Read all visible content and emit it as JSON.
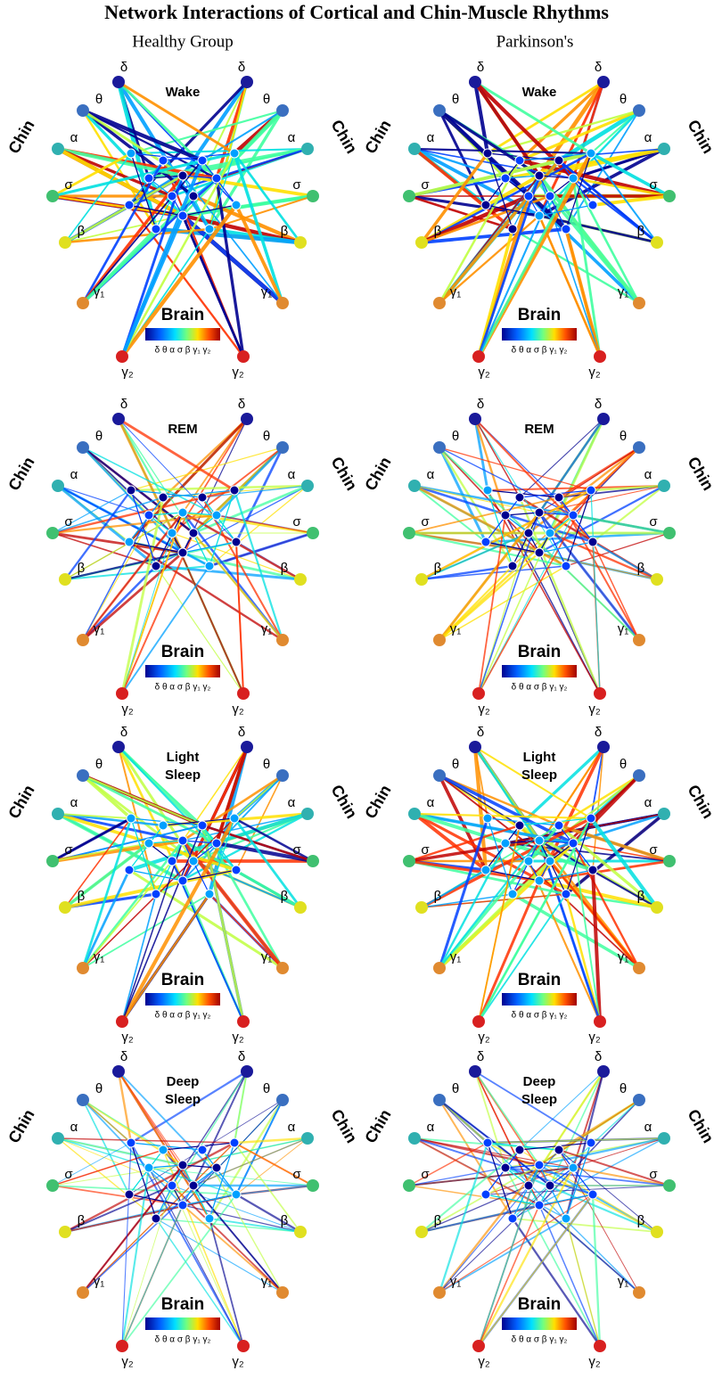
{
  "title": "Network Interactions of Cortical and Chin-Muscle Rhythms",
  "columns": [
    "Healthy Group",
    "Parkinson's"
  ],
  "stages": [
    [
      "Wake"
    ],
    [
      "REM"
    ],
    [
      "Light",
      "Sleep"
    ],
    [
      "Deep",
      "Sleep"
    ]
  ],
  "chin_label": "Chin",
  "brain_label": "Brain",
  "rhythms": [
    "δ",
    "θ",
    "α",
    "σ",
    "β",
    "γ₁",
    "γ₂"
  ],
  "colorbar_label": "δ θ α σ β γ₁ γ₂"
}
